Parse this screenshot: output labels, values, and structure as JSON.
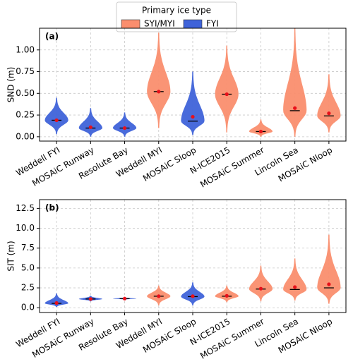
{
  "legend": {
    "title": "Primary ice type",
    "entries": [
      {
        "name": "SYI/MYI",
        "color": "#fa8e6e"
      },
      {
        "name": "FYI",
        "color": "#3f63d9"
      }
    ]
  },
  "chart_data": [
    {
      "type": "violin",
      "panel_label": "(a)",
      "y_label": "SND (m)",
      "grid": true,
      "categories": [
        "Weddell FYI",
        "MOSAiC Runway",
        "Resolute Bay",
        "Weddell MYI",
        "MOSAiC Sloop",
        "N-ICE2015",
        "MOSAiC Summer",
        "Lincoln Sea",
        "MOSAiC Nloop"
      ],
      "ice_type": [
        "FYI",
        "FYI",
        "FYI",
        "SYI/MYI",
        "FYI",
        "SYI/MYI",
        "SYI/MYI",
        "SYI/MYI",
        "SYI/MYI"
      ],
      "min": [
        0.03,
        0.0,
        0.0,
        0.1,
        0.02,
        0.05,
        0.0,
        0.0,
        0.05
      ],
      "max": [
        0.45,
        0.33,
        0.28,
        1.2,
        0.75,
        1.05,
        0.2,
        1.25,
        0.72
      ],
      "median": [
        0.19,
        0.1,
        0.1,
        0.52,
        0.18,
        0.49,
        0.06,
        0.3,
        0.24
      ],
      "mean": [
        0.19,
        0.11,
        0.1,
        0.52,
        0.23,
        0.49,
        0.06,
        0.33,
        0.27
      ],
      "ylim": [
        -0.05,
        1.25
      ],
      "yticks": [
        {
          "value": 0,
          "label": "0.00"
        },
        {
          "value": 0.25,
          "label": "0.25"
        },
        {
          "value": 0.5,
          "label": "0.50"
        },
        {
          "value": 0.75,
          "label": "0.75"
        },
        {
          "value": 1,
          "label": "1.00"
        }
      ]
    },
    {
      "type": "violin",
      "panel_label": "(b)",
      "y_label": "SIT (m)",
      "grid": true,
      "categories": [
        "Weddell FYI",
        "MOSAiC Runway",
        "Resolute Bay",
        "Weddell MYI",
        "MOSAiC Sloop",
        "N-ICE2015",
        "MOSAiC Summer",
        "Lincoln Sea",
        "MOSAiC Nloop"
      ],
      "ice_type": [
        "FYI",
        "FYI",
        "FYI",
        "SYI/MYI",
        "FYI",
        "SYI/MYI",
        "SYI/MYI",
        "SYI/MYI",
        "SYI/MYI"
      ],
      "min": [
        0.1,
        0.8,
        1.0,
        0.3,
        0.3,
        0.7,
        0.8,
        0.9,
        0.5
      ],
      "max": [
        1.8,
        1.5,
        1.3,
        2.8,
        3.2,
        2.8,
        5.3,
        6.2,
        9.2
      ],
      "median": [
        0.55,
        1.1,
        1.15,
        1.45,
        1.4,
        1.45,
        2.35,
        2.3,
        2.5
      ],
      "mean": [
        0.6,
        1.1,
        1.15,
        1.45,
        1.45,
        1.5,
        2.4,
        2.6,
        2.95
      ],
      "ylim": [
        -0.6,
        13.6
      ],
      "yticks": [
        {
          "value": 0,
          "label": "0.0"
        },
        {
          "value": 2.5,
          "label": "2.5"
        },
        {
          "value": 5,
          "label": "5.0"
        },
        {
          "value": 7.5,
          "label": "7.5"
        },
        {
          "value": 10,
          "label": "10.0"
        },
        {
          "value": 12.5,
          "label": "12.5"
        }
      ]
    }
  ]
}
